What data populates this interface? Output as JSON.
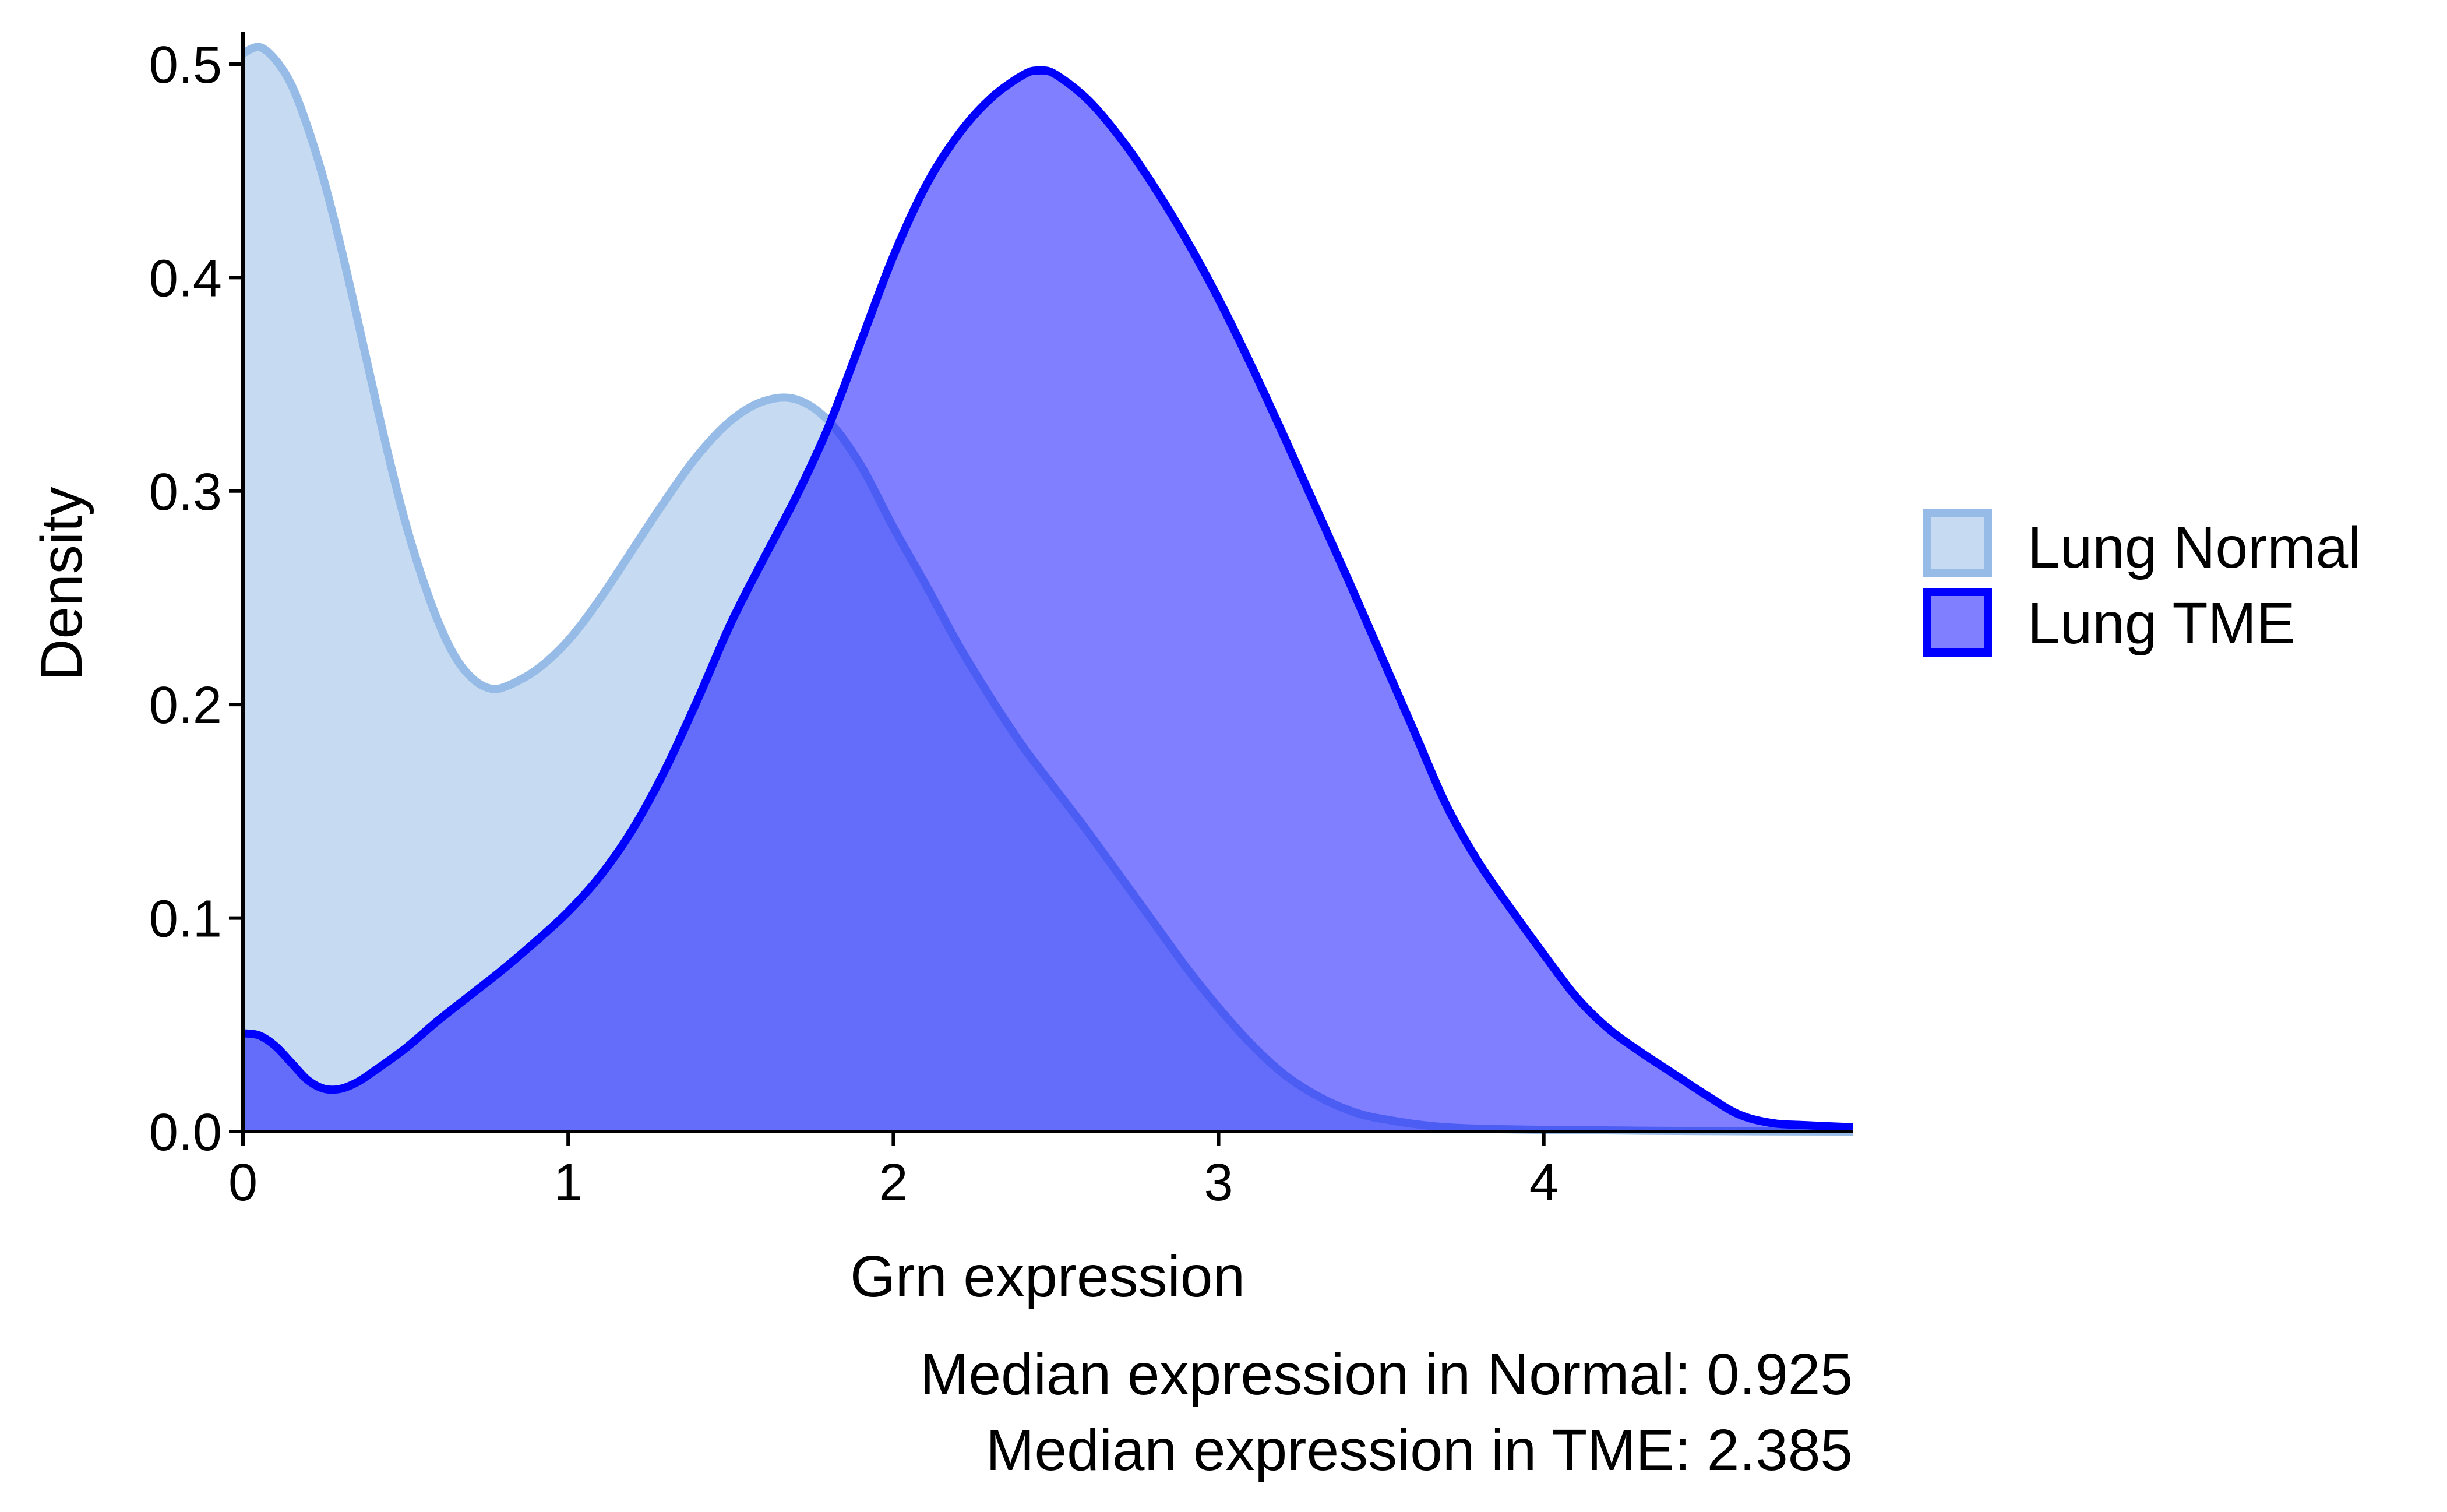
{
  "chart_data": {
    "type": "area",
    "xlabel": "Grn expression",
    "ylabel": "Density",
    "xlim": [
      0,
      4.95
    ],
    "ylim": [
      0,
      0.515
    ],
    "xticks": [
      0,
      1,
      2,
      3,
      4
    ],
    "yticks": [
      0.0,
      0.1,
      0.2,
      0.3,
      0.4,
      0.5
    ],
    "ytick_labels": [
      "0.0",
      "0.1",
      "0.2",
      "0.3",
      "0.4",
      "0.5"
    ],
    "grid": false,
    "legend_position": "right",
    "series": [
      {
        "name": "Lung Normal",
        "fill": "#c6dbf2",
        "fill_opacity": 1,
        "stroke": "#96bbe6",
        "points": [
          [
            0,
            0.505
          ],
          [
            0.05,
            0.508
          ],
          [
            0.1,
            0.502
          ],
          [
            0.15,
            0.49
          ],
          [
            0.2,
            0.47
          ],
          [
            0.25,
            0.445
          ],
          [
            0.3,
            0.415
          ],
          [
            0.35,
            0.382
          ],
          [
            0.4,
            0.348
          ],
          [
            0.45,
            0.315
          ],
          [
            0.5,
            0.285
          ],
          [
            0.55,
            0.26
          ],
          [
            0.6,
            0.239
          ],
          [
            0.65,
            0.223
          ],
          [
            0.7,
            0.213
          ],
          [
            0.75,
            0.208
          ],
          [
            0.8,
            0.208
          ],
          [
            0.9,
            0.216
          ],
          [
            1.0,
            0.23
          ],
          [
            1.1,
            0.25
          ],
          [
            1.2,
            0.273
          ],
          [
            1.3,
            0.296
          ],
          [
            1.4,
            0.317
          ],
          [
            1.5,
            0.333
          ],
          [
            1.6,
            0.342
          ],
          [
            1.7,
            0.343
          ],
          [
            1.8,
            0.333
          ],
          [
            1.9,
            0.312
          ],
          [
            2.0,
            0.283
          ],
          [
            2.1,
            0.256
          ],
          [
            2.2,
            0.228
          ],
          [
            2.3,
            0.203
          ],
          [
            2.4,
            0.18
          ],
          [
            2.5,
            0.16
          ],
          [
            2.6,
            0.14
          ],
          [
            2.7,
            0.119
          ],
          [
            2.8,
            0.098
          ],
          [
            2.9,
            0.077
          ],
          [
            3.0,
            0.058
          ],
          [
            3.1,
            0.041
          ],
          [
            3.2,
            0.027
          ],
          [
            3.3,
            0.017
          ],
          [
            3.4,
            0.01
          ],
          [
            3.5,
            0.006
          ],
          [
            3.7,
            0.002
          ],
          [
            4.0,
            0.0008
          ],
          [
            4.5,
            0.0002
          ],
          [
            4.95,
            0.0
          ]
        ]
      },
      {
        "name": "Lung TME",
        "fill": "#0000ff",
        "fill_opacity": 0.5,
        "stroke": "#0000ff",
        "points": [
          [
            0,
            0.046
          ],
          [
            0.05,
            0.045
          ],
          [
            0.1,
            0.04
          ],
          [
            0.15,
            0.032
          ],
          [
            0.2,
            0.024
          ],
          [
            0.25,
            0.02
          ],
          [
            0.3,
            0.02
          ],
          [
            0.35,
            0.023
          ],
          [
            0.4,
            0.028
          ],
          [
            0.5,
            0.039
          ],
          [
            0.6,
            0.052
          ],
          [
            0.7,
            0.064
          ],
          [
            0.8,
            0.076
          ],
          [
            0.9,
            0.089
          ],
          [
            1.0,
            0.103
          ],
          [
            1.1,
            0.12
          ],
          [
            1.2,
            0.142
          ],
          [
            1.3,
            0.17
          ],
          [
            1.4,
            0.203
          ],
          [
            1.5,
            0.238
          ],
          [
            1.6,
            0.268
          ],
          [
            1.7,
            0.297
          ],
          [
            1.8,
            0.33
          ],
          [
            1.9,
            0.37
          ],
          [
            2.0,
            0.41
          ],
          [
            2.1,
            0.443
          ],
          [
            2.2,
            0.467
          ],
          [
            2.3,
            0.484
          ],
          [
            2.4,
            0.495
          ],
          [
            2.45,
            0.497
          ],
          [
            2.5,
            0.495
          ],
          [
            2.6,
            0.483
          ],
          [
            2.7,
            0.465
          ],
          [
            2.8,
            0.443
          ],
          [
            2.9,
            0.418
          ],
          [
            3.0,
            0.39
          ],
          [
            3.1,
            0.359
          ],
          [
            3.2,
            0.326
          ],
          [
            3.3,
            0.292
          ],
          [
            3.4,
            0.258
          ],
          [
            3.5,
            0.223
          ],
          [
            3.6,
            0.188
          ],
          [
            3.7,
            0.153
          ],
          [
            3.8,
            0.126
          ],
          [
            3.9,
            0.104
          ],
          [
            4.0,
            0.083
          ],
          [
            4.1,
            0.063
          ],
          [
            4.2,
            0.048
          ],
          [
            4.3,
            0.037
          ],
          [
            4.4,
            0.027
          ],
          [
            4.5,
            0.017
          ],
          [
            4.6,
            0.008
          ],
          [
            4.7,
            0.004
          ],
          [
            4.8,
            0.003
          ],
          [
            4.95,
            0.002
          ]
        ]
      }
    ]
  },
  "captions": [
    "Median expression in Normal: 0.925",
    "Median expression in TME: 2.385"
  ]
}
